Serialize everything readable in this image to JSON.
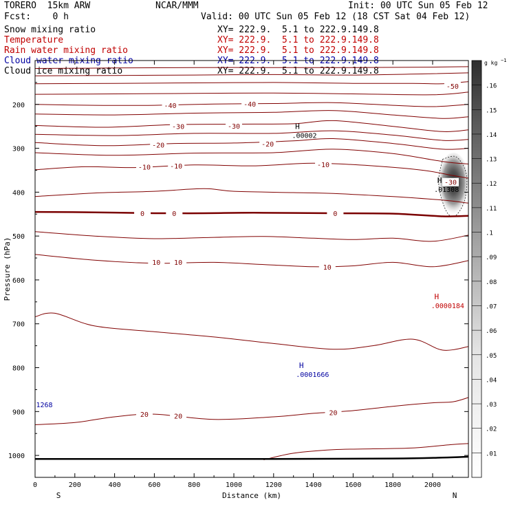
{
  "header": {
    "model": "TORERO  15km ARW",
    "center": "NCAR/MMM",
    "init": "Init: 00 UTC Sun 05 Feb 12",
    "fcst": "Fcst:    0 h",
    "valid": "Valid: 00 UTC Sun 05 Feb 12 (18 CST Sat 04 Feb 12)"
  },
  "fields": [
    {
      "name": "Snow mixing ratio",
      "xy": "XY= 222.9.  5.1 to 222.9.149.8",
      "color": "#000000"
    },
    {
      "name": "Temperature",
      "xy": "XY= 222.9.  5.1 to 222.9.149.8",
      "color": "#c00000"
    },
    {
      "name": "Rain water mixing ratio",
      "xy": "XY= 222.9.  5.1 to 222.9.149.8",
      "color": "#c00000"
    },
    {
      "name": "Cloud water mixing ratio",
      "xy": "XY= 222.9.  5.1 to 222.9.149.8",
      "color": "#0000a0"
    },
    {
      "name": "Cloud ice mixing ratio",
      "xy": "XY= 222.9.  5.1 to 222.9.149.8",
      "color": "#000000"
    }
  ],
  "chart_data": {
    "type": "cross-section contour",
    "xlabel": "Distance (km)",
    "ylabel": "Pressure (hPa)",
    "xlim": [
      0,
      2180
    ],
    "ylim": [
      1050,
      100
    ],
    "x_ticks": [
      0,
      200,
      400,
      600,
      800,
      1000,
      1200,
      1400,
      1600,
      1800,
      2000
    ],
    "y_ticks": [
      200,
      300,
      400,
      500,
      600,
      700,
      800,
      900,
      1000
    ],
    "left_end": "S",
    "right_end": "N",
    "temperature_contours": [
      {
        "value": -60,
        "label": "",
        "pts": [
          [
            0,
            118
          ],
          [
            400,
            117
          ],
          [
            800,
            116
          ],
          [
            1200,
            116
          ],
          [
            1600,
            116
          ],
          [
            2000,
            115
          ],
          [
            2180,
            114
          ]
        ]
      },
      {
        "value": -55,
        "label": "",
        "pts": [
          [
            0,
            135
          ],
          [
            400,
            134
          ],
          [
            800,
            133
          ],
          [
            1200,
            132
          ],
          [
            1600,
            133
          ],
          [
            2000,
            130
          ],
          [
            2180,
            128
          ]
        ]
      },
      {
        "value": -50,
        "label": "-50",
        "pts": [
          [
            0,
            153
          ],
          [
            400,
            152
          ],
          [
            800,
            151
          ],
          [
            1200,
            150
          ],
          [
            1600,
            152
          ],
          [
            1900,
            152
          ],
          [
            2050,
            153
          ],
          [
            2180,
            148
          ]
        ]
      },
      {
        "value": -45,
        "label": "",
        "pts": [
          [
            0,
            177
          ],
          [
            400,
            176
          ],
          [
            800,
            175
          ],
          [
            1200,
            174
          ],
          [
            1600,
            176
          ],
          [
            2000,
            178
          ],
          [
            2180,
            172
          ]
        ]
      },
      {
        "value": -40,
        "label": "-40",
        "pts": [
          [
            0,
            200
          ],
          [
            300,
            202
          ],
          [
            600,
            202
          ],
          [
            900,
            199
          ],
          [
            1200,
            198
          ],
          [
            1500,
            196
          ],
          [
            1800,
            202
          ],
          [
            2000,
            205
          ],
          [
            2180,
            200
          ]
        ]
      },
      {
        "value": -35,
        "label": "",
        "pts": [
          [
            0,
            222
          ],
          [
            400,
            224
          ],
          [
            800,
            220
          ],
          [
            1200,
            218
          ],
          [
            1500,
            214
          ],
          [
            1800,
            224
          ],
          [
            2050,
            232
          ],
          [
            2180,
            228
          ]
        ]
      },
      {
        "value": -30,
        "label": "-30",
        "pts": [
          [
            0,
            248
          ],
          [
            350,
            252
          ],
          [
            700,
            246
          ],
          [
            1000,
            245
          ],
          [
            1300,
            244
          ],
          [
            1500,
            237
          ],
          [
            1800,
            250
          ],
          [
            2050,
            262
          ],
          [
            2180,
            258
          ]
        ]
      },
      {
        "value": -25,
        "label": "",
        "pts": [
          [
            0,
            268
          ],
          [
            400,
            271
          ],
          [
            800,
            266
          ],
          [
            1200,
            266
          ],
          [
            1500,
            260
          ],
          [
            1800,
            270
          ],
          [
            2050,
            282
          ],
          [
            2180,
            280
          ]
        ]
      },
      {
        "value": -20,
        "label": "-20",
        "pts": [
          [
            0,
            287
          ],
          [
            350,
            294
          ],
          [
            700,
            289
          ],
          [
            1000,
            288
          ],
          [
            1300,
            283
          ],
          [
            1500,
            278
          ],
          [
            1800,
            289
          ],
          [
            2050,
            302
          ],
          [
            2180,
            300
          ]
        ]
      },
      {
        "value": -15,
        "label": "",
        "pts": [
          [
            0,
            310
          ],
          [
            400,
            316
          ],
          [
            800,
            311
          ],
          [
            1200,
            310
          ],
          [
            1500,
            302
          ],
          [
            1800,
            312
          ],
          [
            2050,
            330
          ],
          [
            2180,
            336
          ]
        ]
      },
      {
        "value": -10,
        "label": "-10",
        "pts": [
          [
            0,
            349
          ],
          [
            250,
            342
          ],
          [
            500,
            344
          ],
          [
            800,
            338
          ],
          [
            1100,
            340
          ],
          [
            1400,
            334
          ],
          [
            1700,
            340
          ],
          [
            1950,
            350
          ],
          [
            2100,
            362
          ],
          [
            2180,
            368
          ]
        ]
      },
      {
        "value": -5,
        "label": "",
        "pts": [
          [
            0,
            410
          ],
          [
            300,
            402
          ],
          [
            600,
            398
          ],
          [
            850,
            392
          ],
          [
            1000,
            398
          ],
          [
            1300,
            401
          ],
          [
            1500,
            403
          ],
          [
            1800,
            410
          ],
          [
            2050,
            418
          ],
          [
            2180,
            425
          ]
        ]
      },
      {
        "value": 0,
        "label": "0",
        "pts": [
          [
            0,
            445
          ],
          [
            300,
            446
          ],
          [
            600,
            448
          ],
          [
            850,
            448
          ],
          [
            1100,
            447
          ],
          [
            1500,
            448
          ],
          [
            1800,
            449
          ],
          [
            2050,
            455
          ],
          [
            2180,
            454
          ]
        ]
      },
      {
        "value": 5,
        "label": "",
        "pts": [
          [
            0,
            490
          ],
          [
            300,
            500
          ],
          [
            600,
            506
          ],
          [
            900,
            503
          ],
          [
            1150,
            501
          ],
          [
            1400,
            505
          ],
          [
            1600,
            508
          ],
          [
            1800,
            505
          ],
          [
            2000,
            512
          ],
          [
            2180,
            498
          ]
        ]
      },
      {
        "value": 10,
        "label": "10",
        "pts": [
          [
            0,
            542
          ],
          [
            300,
            555
          ],
          [
            600,
            562
          ],
          [
            900,
            560
          ],
          [
            1150,
            565
          ],
          [
            1400,
            570
          ],
          [
            1600,
            568
          ],
          [
            1800,
            560
          ],
          [
            2000,
            570
          ],
          [
            2180,
            556
          ]
        ]
      },
      {
        "value": 15,
        "label": "",
        "pts": [
          [
            0,
            684
          ],
          [
            100,
            676
          ],
          [
            300,
            705
          ],
          [
            600,
            718
          ],
          [
            900,
            730
          ],
          [
            1200,
            745
          ],
          [
            1500,
            758
          ],
          [
            1700,
            750
          ],
          [
            1900,
            735
          ],
          [
            2050,
            760
          ],
          [
            2180,
            752
          ]
        ]
      },
      {
        "value": 20,
        "label": "20",
        "pts": [
          [
            0,
            930
          ],
          [
            200,
            925
          ],
          [
            400,
            912
          ],
          [
            600,
            906
          ],
          [
            900,
            918
          ],
          [
            1200,
            912
          ],
          [
            1400,
            904
          ],
          [
            1600,
            898
          ],
          [
            1800,
            888
          ],
          [
            2000,
            880
          ],
          [
            2100,
            878
          ],
          [
            2180,
            868
          ]
        ]
      },
      {
        "value": 25,
        "label": "",
        "pts": [
          [
            1150,
            1010
          ],
          [
            1300,
            995
          ],
          [
            1500,
            987
          ],
          [
            1700,
            985
          ],
          [
            1900,
            983
          ],
          [
            2100,
            975
          ],
          [
            2180,
            973
          ]
        ]
      }
    ],
    "contour_labels": [
      {
        "text": "-50",
        "x": 2100,
        "y": 158
      },
      {
        "text": "-40",
        "x": 680,
        "y": 202
      },
      {
        "text": "-40",
        "x": 1080,
        "y": 199
      },
      {
        "text": "-30",
        "x": 720,
        "y": 250
      },
      {
        "text": "-30",
        "x": 1000,
        "y": 249
      },
      {
        "text": "-30",
        "x": 2090,
        "y": 377
      },
      {
        "text": "-20",
        "x": 620,
        "y": 292
      },
      {
        "text": "-20",
        "x": 1170,
        "y": 290
      },
      {
        "text": "-10",
        "x": 550,
        "y": 342
      },
      {
        "text": "-10",
        "x": 710,
        "y": 340
      },
      {
        "text": "-10",
        "x": 1450,
        "y": 337
      },
      {
        "text": "0",
        "x": 540,
        "y": 448
      },
      {
        "text": "0",
        "x": 700,
        "y": 448
      },
      {
        "text": "0",
        "x": 1510,
        "y": 448
      },
      {
        "text": "10",
        "x": 610,
        "y": 559
      },
      {
        "text": "10",
        "x": 720,
        "y": 559
      },
      {
        "text": "10",
        "x": 1470,
        "y": 570
      },
      {
        "text": "20",
        "x": 550,
        "y": 906
      },
      {
        "text": "20",
        "x": 720,
        "y": 910
      },
      {
        "text": "20",
        "x": 1500,
        "y": 902
      }
    ],
    "extrema": [
      {
        "label": "H",
        "value": ".00002",
        "x": 1320,
        "y": 262,
        "color": "#000000"
      },
      {
        "label": "H",
        "value": ".01308",
        "x": 2035,
        "y": 385,
        "color": "#000000"
      },
      {
        "label": "H",
        "value": ".0000184",
        "x": 2020,
        "y": 650,
        "color": "#c00000"
      },
      {
        "label": "H",
        "value": ".0001666",
        "x": 1340,
        "y": 807,
        "color": "#0000a0"
      },
      {
        "label": "",
        "value": "1268",
        "x": 5,
        "y": 876,
        "color": "#0000a0"
      }
    ],
    "terrain": [
      [
        0,
        1008
      ],
      [
        1200,
        1008
      ],
      [
        1800,
        1007
      ],
      [
        2050,
        1005
      ],
      [
        2180,
        1003
      ]
    ],
    "shaded_maximum": {
      "field": "Snow mixing ratio",
      "center_x": 2105,
      "center_p": 385,
      "max": 0.13
    },
    "colorbar": {
      "units": "g kg",
      "units_exp": "−1",
      "ticks": [
        ".01",
        ".02",
        ".03",
        ".04",
        ".05",
        ".06",
        ".07",
        ".08",
        ".09",
        ".1",
        ".11",
        ".12",
        ".13",
        ".14",
        ".15",
        ".16"
      ]
    }
  }
}
